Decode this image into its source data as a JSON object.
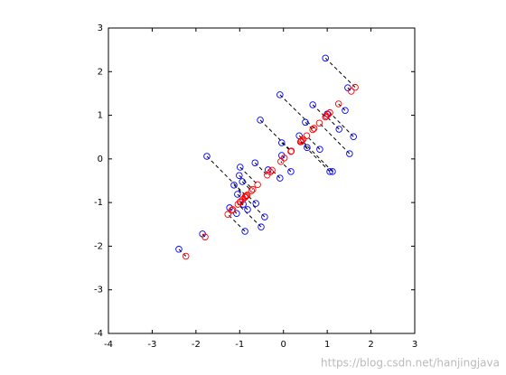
{
  "chart_data": {
    "type": "scatter",
    "series": [
      {
        "color": "#0000ff",
        "x": [
          0.96,
          1.47,
          -0.08,
          0.67,
          -0.53,
          1.41,
          1.0,
          1.27,
          1.6,
          1.51,
          -1.75,
          -0.99,
          -0.65,
          -0.04,
          -0.04,
          0.17,
          -0.08,
          1.06,
          1.12,
          -1.01,
          -0.94,
          -0.35,
          -1.13,
          -1.05,
          -0.92,
          -1.23,
          -0.82,
          -0.63,
          -0.43,
          -0.51,
          -0.88,
          -1.07,
          -1.85,
          -2.39,
          0.36,
          0.5,
          0.54,
          0.83
        ],
        "y": [
          2.31,
          1.63,
          1.47,
          1.24,
          0.89,
          1.11,
          1.03,
          0.68,
          0.51,
          0.12,
          0.06,
          -0.19,
          -0.09,
          0.37,
          0.08,
          -0.29,
          -0.44,
          -0.29,
          -0.29,
          -0.38,
          -0.52,
          -0.25,
          -0.6,
          -0.81,
          -1.04,
          -1.12,
          -1.16,
          -1.02,
          -1.33,
          -1.56,
          -1.66,
          -1.25,
          -1.72,
          -2.07,
          0.53,
          0.84,
          0.26,
          0.22
        ]
      },
      {
        "color": "#ff0000",
        "x": [
          1.64,
          1.55,
          0.7,
          0.96,
          0.18,
          1.26,
          1.02,
          0.98,
          1.06,
          0.82,
          -0.85,
          -0.59,
          -0.37,
          0.17,
          0.02,
          -0.06,
          -0.26,
          0.39,
          0.42,
          -0.7,
          -0.73,
          -0.3,
          -0.87,
          -0.93,
          -0.98,
          -1.18,
          -0.99,
          -0.83,
          -0.88,
          -1.04,
          -1.27,
          -1.16,
          -1.79,
          -2.23,
          0.45,
          0.67,
          0.4,
          0.53
        ],
        "y": [
          1.64,
          1.55,
          0.7,
          0.96,
          0.18,
          1.26,
          1.02,
          0.98,
          1.06,
          0.82,
          -0.85,
          -0.59,
          -0.37,
          0.17,
          0.02,
          -0.06,
          -0.26,
          0.39,
          0.42,
          -0.7,
          -0.73,
          -0.3,
          -0.87,
          -0.93,
          -0.98,
          -1.18,
          -0.99,
          -0.83,
          -0.88,
          -1.04,
          -1.27,
          -1.16,
          -1.79,
          -2.23,
          0.45,
          0.67,
          0.4,
          0.53
        ]
      }
    ],
    "xlim": [
      -4,
      3
    ],
    "ylim": [
      -4,
      3
    ],
    "xticks": [
      -4,
      -3,
      -2,
      -1,
      0,
      1,
      2,
      3
    ],
    "yticks": [
      -4,
      -3,
      -2,
      -1,
      0,
      1,
      2,
      3
    ],
    "watermark": "https://blog.csdn.net/hanjingjava"
  }
}
